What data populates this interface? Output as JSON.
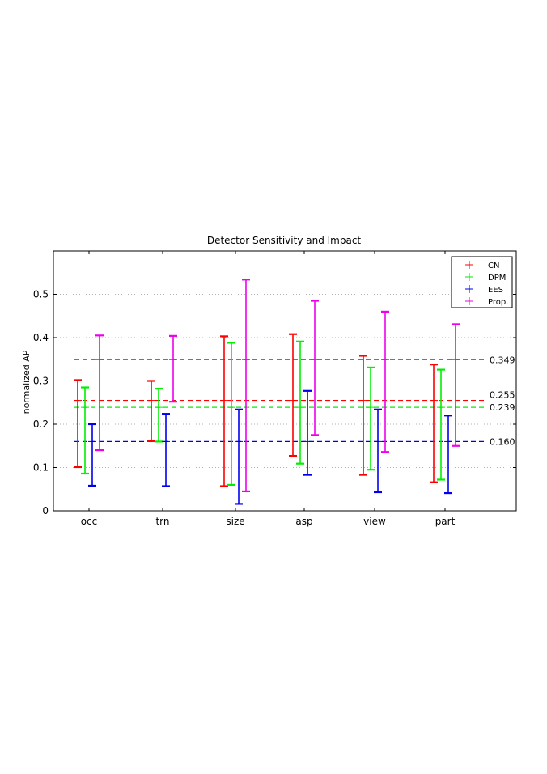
{
  "chart_data": {
    "type": "errorbar",
    "title": "Detector Sensitivity and Impact",
    "xlabel": "",
    "ylabel": "normalized AP",
    "ylim": [
      0,
      0.6
    ],
    "yticks": [
      "0",
      "0.1",
      "0.2",
      "0.3",
      "0.4",
      "0.5"
    ],
    "grid": true,
    "legend_position": "top-right",
    "categories": [
      "occ",
      "trn",
      "size",
      "asp",
      "view",
      "part"
    ],
    "series": [
      {
        "name": "CN",
        "color": "#ff0000",
        "mean": 0.255,
        "mean_label": "0.255",
        "points": [
          {
            "mid": 0.255,
            "low": 0.101,
            "high": 0.302
          },
          {
            "mid": 0.255,
            "low": 0.161,
            "high": 0.3
          },
          {
            "mid": 0.255,
            "low": 0.057,
            "high": 0.403
          },
          {
            "mid": 0.255,
            "low": 0.127,
            "high": 0.408
          },
          {
            "mid": 0.255,
            "low": 0.083,
            "high": 0.358
          },
          {
            "mid": 0.255,
            "low": 0.066,
            "high": 0.338
          }
        ]
      },
      {
        "name": "DPM",
        "color": "#00ee00",
        "mean": 0.239,
        "mean_label": "0.239",
        "points": [
          {
            "mid": 0.239,
            "low": 0.086,
            "high": 0.285
          },
          {
            "mid": 0.239,
            "low": 0.16,
            "high": 0.282
          },
          {
            "mid": 0.239,
            "low": 0.06,
            "high": 0.388
          },
          {
            "mid": 0.239,
            "low": 0.109,
            "high": 0.391
          },
          {
            "mid": 0.239,
            "low": 0.095,
            "high": 0.331
          },
          {
            "mid": 0.239,
            "low": 0.072,
            "high": 0.326
          }
        ]
      },
      {
        "name": "EES",
        "color": "#0000ee",
        "mean": 0.16,
        "mean_label": "0.160",
        "points": [
          {
            "mid": 0.16,
            "low": 0.058,
            "high": 0.2
          },
          {
            "mid": 0.16,
            "low": 0.057,
            "high": 0.224
          },
          {
            "mid": 0.16,
            "low": 0.016,
            "high": 0.234
          },
          {
            "mid": 0.16,
            "low": 0.083,
            "high": 0.277
          },
          {
            "mid": 0.16,
            "low": 0.043,
            "high": 0.234
          },
          {
            "mid": 0.16,
            "low": 0.041,
            "high": 0.22
          }
        ]
      },
      {
        "name": "Prop.",
        "color": "#ee00ee",
        "mean": 0.349,
        "mean_label": "0.349",
        "points": [
          {
            "mid": 0.349,
            "low": 0.14,
            "high": 0.405
          },
          {
            "mid": 0.349,
            "low": 0.252,
            "high": 0.404
          },
          {
            "mid": 0.349,
            "low": 0.045,
            "high": 0.534
          },
          {
            "mid": 0.349,
            "low": 0.175,
            "high": 0.485
          },
          {
            "mid": 0.349,
            "low": 0.136,
            "high": 0.46
          },
          {
            "mid": 0.349,
            "low": 0.15,
            "high": 0.431
          }
        ]
      }
    ]
  }
}
